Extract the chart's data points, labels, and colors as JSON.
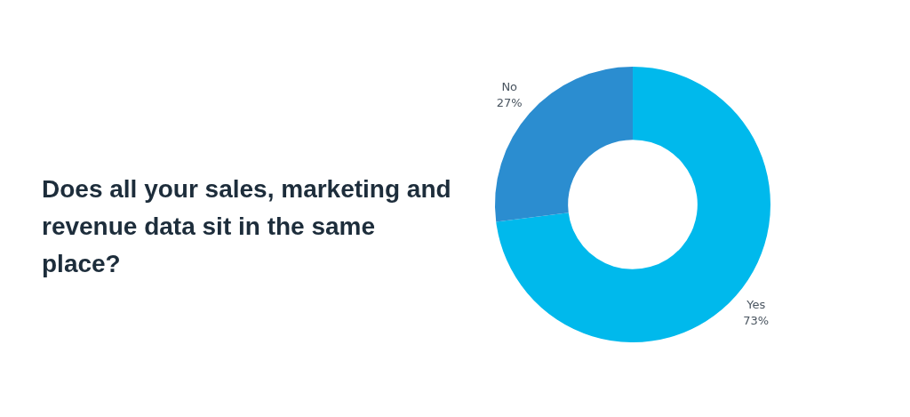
{
  "chart_data": {
    "type": "donut",
    "title": "Does all your sales, marketing and revenue data sit in the same place?",
    "categories": [
      "Yes",
      "No"
    ],
    "values": [
      73,
      27
    ],
    "colors": [
      "#00b9ec",
      "#2b8dd0"
    ],
    "value_labels": [
      "73%",
      "27%"
    ],
    "legend": false
  }
}
